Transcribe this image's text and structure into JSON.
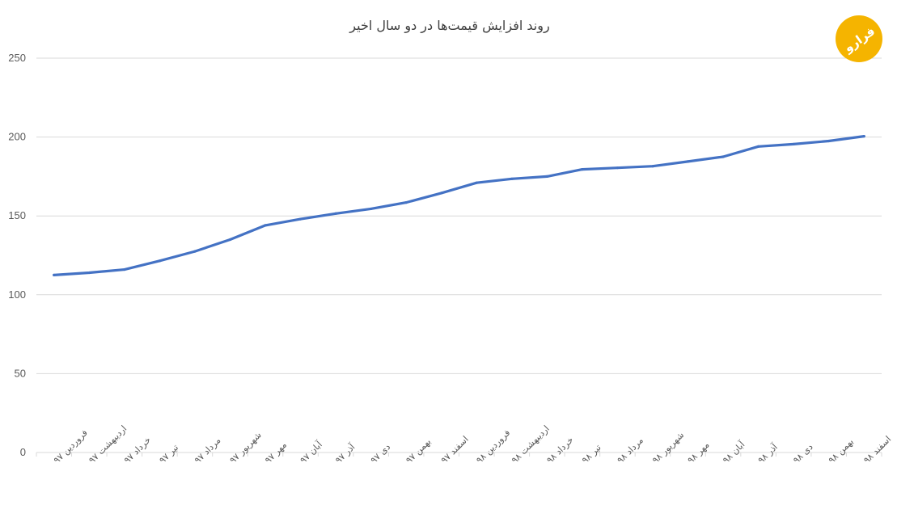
{
  "chart_data": {
    "type": "line",
    "title": "روند افزایش قیمت‌ها در دو سال اخیر",
    "xlabel": "",
    "ylabel": "",
    "ylim": [
      0,
      250
    ],
    "yticks": [
      0,
      50,
      100,
      150,
      200,
      250
    ],
    "grid": true,
    "legend": "none",
    "categories": [
      "فروردین ۹۷",
      "اردیبهشت ۹۷",
      "خرداد ۹۷",
      "تیر ۹۷",
      "مرداد ۹۷",
      "شهریور ۹۷",
      "مهر ۹۷",
      "آبان ۹۷",
      "آذر ۹۷",
      "دی ۹۷",
      "بهمن ۹۷",
      "اسفند ۹۷",
      "فروردین ۹۸",
      "اردیبهشت ۹۸",
      "خرداد ۹۸",
      "تیر ۹۸",
      "مرداد ۹۸",
      "شهریور ۹۸",
      "مهر ۹۸",
      "آبان ۹۸",
      "آذر ۹۸",
      "دی ۹۸",
      "بهمن ۹۸",
      "اسفند ۹۸"
    ],
    "series": [
      {
        "values": [
          112.5,
          114,
          116,
          121.5,
          127.5,
          135,
          144,
          148,
          151.5,
          154.5,
          158.5,
          164.5,
          171,
          173.5,
          175,
          179.5,
          180.5,
          181.5,
          184.5,
          187.5,
          194,
          195.5,
          197.5,
          200.5
        ],
        "color": "#4472c4"
      }
    ]
  },
  "logo": {
    "text": "فرارو",
    "color": "#f5b400"
  }
}
